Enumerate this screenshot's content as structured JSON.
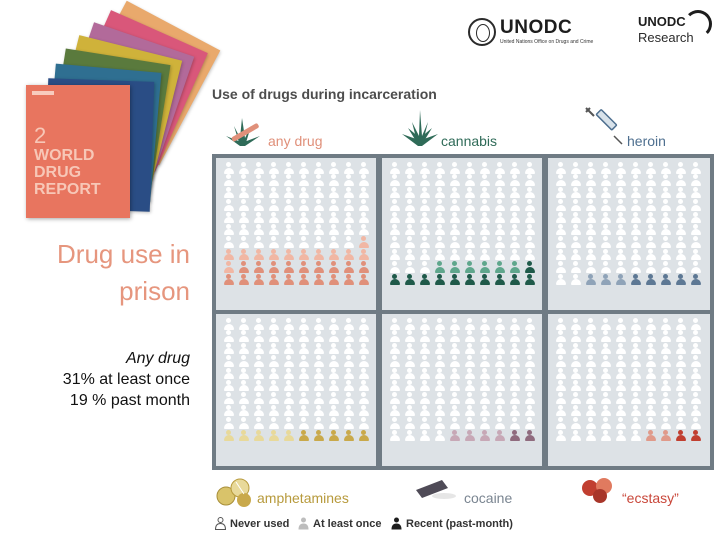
{
  "report": {
    "year": "2",
    "title": "WORLD DRUG REPORT",
    "subtitle": "",
    "cover_colors": [
      "#e9a96c",
      "#d9577a",
      "#b26a9a",
      "#cfb23a",
      "#5a7a3d",
      "#2f6f91",
      "#2a4d85"
    ]
  },
  "logos": {
    "unodc_name": "UNODC",
    "unodc_sub": "United Nations Office on Drugs and Crime",
    "research_name": "UNODC",
    "research_sub": "Research"
  },
  "left": {
    "title_line1": "Drug use in",
    "title_line2": "prison",
    "sub_line1": "Any drug",
    "sub_line2": "31% at least once",
    "sub_line3": "19 % past month"
  },
  "graphic": {
    "title": "Use of drugs during incarceration",
    "panels": [
      {
        "label": "any drug",
        "label_color": "#e0907a",
        "icon": "cannabis-syringe-icon",
        "at_least_once": 31,
        "past_month": 19,
        "light": "#f1b7a4",
        "dark": "#e0907a"
      },
      {
        "label": "cannabis",
        "label_color": "#2f6b58",
        "icon": "cannabis-leaf-icon",
        "at_least_once": 17,
        "past_month": 11,
        "light": "#5fa68c",
        "dark": "#1f5a4a"
      },
      {
        "label": "heroin",
        "label_color": "#4e6f8f",
        "icon": "syringe-icon",
        "at_least_once": 8,
        "past_month": 5,
        "light": "#8fa3b8",
        "dark": "#5d7894"
      },
      {
        "label": "amphetamines",
        "label_color": "#b79a3c",
        "icon": "pills-icon",
        "at_least_once": 10,
        "past_month": 5,
        "light": "#e8d99a",
        "dark": "#c9a94b"
      },
      {
        "label": "cocaine",
        "label_color": "#7a8591",
        "icon": "cocaine-packet-icon",
        "at_least_once": 6,
        "past_month": 2,
        "light": "#c7a8b6",
        "dark": "#8f6b7e"
      },
      {
        "label": "“ecstasy”",
        "label_color": "#c9473a",
        "icon": "tablets-icon",
        "at_least_once": 4,
        "past_month": 2,
        "light": "#e09a8a",
        "dark": "#c13f30"
      }
    ],
    "people_per_panel": 100,
    "never_color": "#ffffff",
    "legend": {
      "never": "Never used",
      "at_least_once": "At least once",
      "recent": "Recent (past-month)"
    }
  }
}
